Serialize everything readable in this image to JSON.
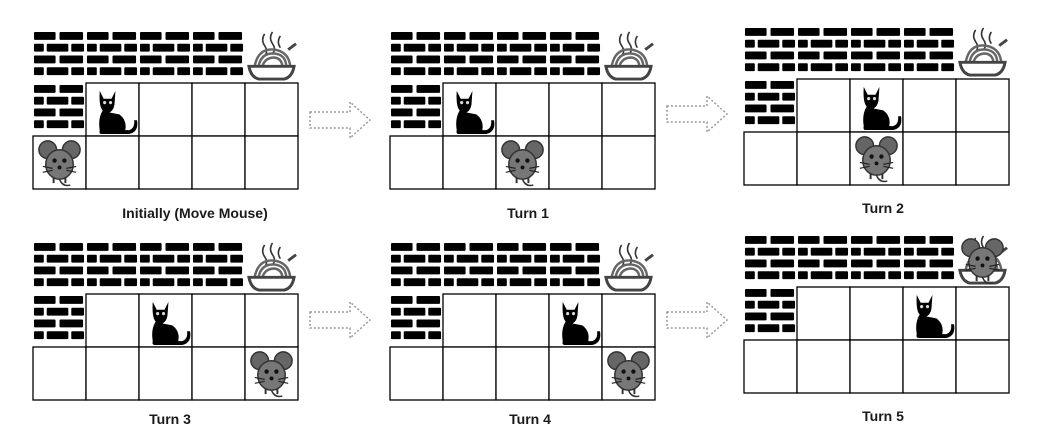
{
  "panels": [
    {
      "caption": "Initially (Move Mouse)",
      "grid": [
        [
          "W",
          "W",
          "W",
          "W",
          "F"
        ],
        [
          "W",
          "C",
          "E",
          "E",
          "E"
        ],
        [
          "M",
          "E",
          "E",
          "E",
          "E"
        ]
      ]
    },
    {
      "caption": "Turn 1",
      "grid": [
        [
          "W",
          "W",
          "W",
          "W",
          "F"
        ],
        [
          "W",
          "C",
          "E",
          "E",
          "E"
        ],
        [
          "E",
          "E",
          "M",
          "E",
          "E"
        ]
      ]
    },
    {
      "caption": "Turn 2",
      "grid": [
        [
          "W",
          "W",
          "W",
          "W",
          "F"
        ],
        [
          "W",
          "E",
          "C",
          "E",
          "E"
        ],
        [
          "E",
          "E",
          "M",
          "E",
          "E"
        ]
      ]
    },
    {
      "caption": "Turn 3",
      "grid": [
        [
          "W",
          "W",
          "W",
          "W",
          "F"
        ],
        [
          "W",
          "E",
          "C",
          "E",
          "E"
        ],
        [
          "E",
          "E",
          "E",
          "E",
          "M"
        ]
      ]
    },
    {
      "caption": "Turn 4",
      "grid": [
        [
          "W",
          "W",
          "W",
          "W",
          "F"
        ],
        [
          "W",
          "E",
          "E",
          "C",
          "E"
        ],
        [
          "E",
          "E",
          "E",
          "E",
          "M"
        ]
      ]
    },
    {
      "caption": "Turn 5",
      "grid": [
        [
          "W",
          "W",
          "W",
          "W",
          "F+M"
        ],
        [
          "W",
          "E",
          "E",
          "C",
          "E"
        ],
        [
          "E",
          "E",
          "E",
          "E",
          "E"
        ]
      ]
    }
  ],
  "arrows": 4,
  "colors": {
    "cell_border": "#000000",
    "wall": "#000000",
    "cat": "#000000",
    "mouse": "#555555",
    "bowl": "#555555",
    "arrow": "#9a9a9a"
  },
  "icons": {
    "W": "brick-wall-icon",
    "C": "cat-icon",
    "M": "mouse-icon",
    "F": "noodle-bowl-icon",
    "E": "empty-cell"
  }
}
